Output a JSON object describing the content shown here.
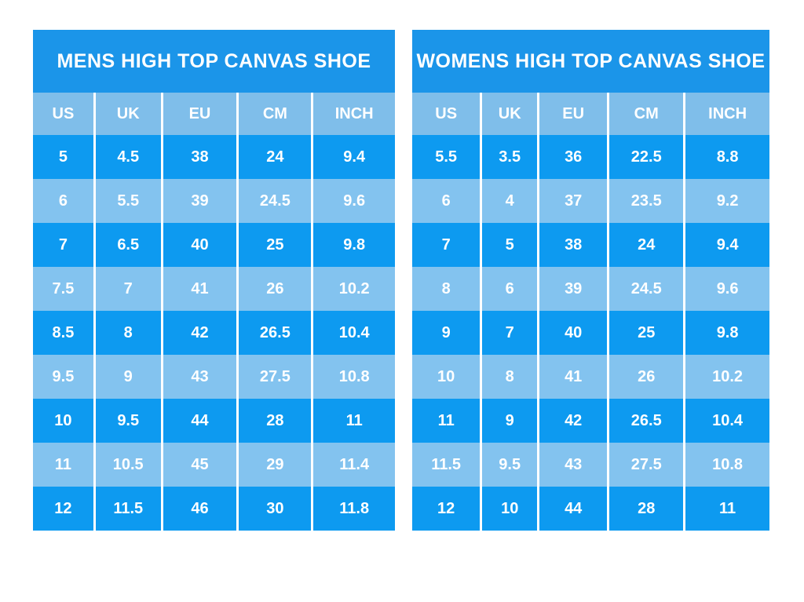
{
  "page": {
    "background": "#ffffff"
  },
  "colors": {
    "page_bg": "#ffffff",
    "title_bar": "#1b95e9",
    "header_row": "#7fbeea",
    "row_dark": "#0d9af0",
    "row_light": "#83c3ef",
    "separator": "#ffffff",
    "text": "#ffffff"
  },
  "chart_data": [
    {
      "type": "table",
      "title": "MENS HIGH TOP CANVAS SHOE",
      "columns": [
        "US",
        "UK",
        "EU",
        "CM",
        "INCH"
      ],
      "rows": [
        [
          "5",
          "4.5",
          "38",
          "24",
          "9.4"
        ],
        [
          "6",
          "5.5",
          "39",
          "24.5",
          "9.6"
        ],
        [
          "7",
          "6.5",
          "40",
          "25",
          "9.8"
        ],
        [
          "7.5",
          "7",
          "41",
          "26",
          "10.2"
        ],
        [
          "8.5",
          "8",
          "42",
          "26.5",
          "10.4"
        ],
        [
          "9.5",
          "9",
          "43",
          "27.5",
          "10.8"
        ],
        [
          "10",
          "9.5",
          "44",
          "28",
          "11"
        ],
        [
          "11",
          "10.5",
          "45",
          "29",
          "11.4"
        ],
        [
          "12",
          "11.5",
          "46",
          "30",
          "11.8"
        ]
      ],
      "layout": {
        "row_striping": "starts dark, alternates dark/light",
        "legend": "none",
        "grid": "white vertical separators between columns only"
      }
    },
    {
      "type": "table",
      "title": "WOMENS HIGH TOP CANVAS SHOE",
      "columns": [
        "US",
        "UK",
        "EU",
        "CM",
        "INCH"
      ],
      "rows": [
        [
          "5.5",
          "3.5",
          "36",
          "22.5",
          "8.8"
        ],
        [
          "6",
          "4",
          "37",
          "23.5",
          "9.2"
        ],
        [
          "7",
          "5",
          "38",
          "24",
          "9.4"
        ],
        [
          "8",
          "6",
          "39",
          "24.5",
          "9.6"
        ],
        [
          "9",
          "7",
          "40",
          "25",
          "9.8"
        ],
        [
          "10",
          "8",
          "41",
          "26",
          "10.2"
        ],
        [
          "11",
          "9",
          "42",
          "26.5",
          "10.4"
        ],
        [
          "11.5",
          "9.5",
          "43",
          "27.5",
          "10.8"
        ],
        [
          "12",
          "10",
          "44",
          "28",
          "11"
        ]
      ],
      "layout": {
        "row_striping": "starts dark, alternates dark/light",
        "legend": "none",
        "grid": "white vertical separators between columns only"
      }
    }
  ]
}
